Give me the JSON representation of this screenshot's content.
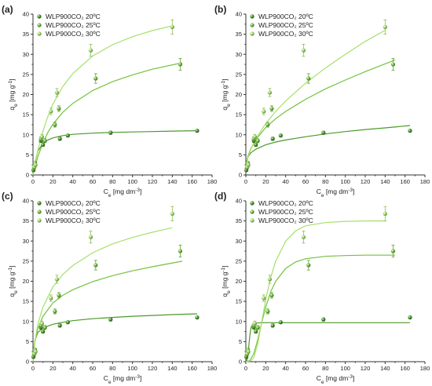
{
  "colors": {
    "s20": "#4a9a2a",
    "s25": "#73c23e",
    "s30": "#a7e06b"
  },
  "chart_data": [
    {
      "type": "scatter",
      "panel": "(a)",
      "xlabel_main": "C",
      "xlabel_sub": "e",
      "xlabel_unit": " [mg dm",
      "xlabel_sup": "-3",
      "xlabel_end": "]",
      "ylabel_main": "q",
      "ylabel_sub": "e",
      "ylabel_unit": " [mg g",
      "ylabel_sup": "-1",
      "ylabel_end": "]",
      "xlim": [
        0,
        180
      ],
      "ylim": [
        0,
        40
      ],
      "xticks": [
        "0",
        "20",
        "40",
        "60",
        "80",
        "100",
        "120",
        "140",
        "160",
        "180"
      ],
      "yticks": [
        "0",
        "5",
        "10",
        "15",
        "20",
        "25",
        "30",
        "35",
        "40"
      ],
      "legend": [
        "WLP900CO₂ 20ºC",
        "WLP900CO₂ 25ºC",
        "WLP900CO₂ 30ºC"
      ],
      "series": [
        {
          "name": "WLP900CO₂ 20ºC",
          "x": [
            0.5,
            1.5,
            8,
            10,
            27,
            35,
            78,
            165
          ],
          "y": [
            1.2,
            2.5,
            8.5,
            7.5,
            9.0,
            9.8,
            10.5,
            11.0
          ],
          "err": [
            0.3,
            0.3,
            0.4,
            0.4,
            0.4,
            0.3,
            0.4,
            0.3
          ],
          "fit_x": [
            0,
            2,
            5,
            10,
            15,
            20,
            30,
            40,
            60,
            80,
            100,
            120,
            140,
            165
          ],
          "fit_y": [
            0,
            3.0,
            6.0,
            7.8,
            8.7,
            9.2,
            9.8,
            10.1,
            10.4,
            10.6,
            10.7,
            10.8,
            10.9,
            11.0
          ]
        },
        {
          "name": "WLP900CO₂ 25ºC",
          "x": [
            1,
            2,
            8,
            12,
            22,
            26,
            63,
            148
          ],
          "y": [
            1.8,
            3.0,
            9.0,
            8.5,
            12.5,
            16.5,
            24.0,
            27.5
          ],
          "err": [
            0.3,
            0.3,
            0.5,
            0.5,
            0.6,
            0.7,
            1.2,
            1.5
          ],
          "fit_x": [
            0,
            2,
            5,
            10,
            15,
            20,
            30,
            40,
            60,
            80,
            100,
            120,
            150
          ],
          "fit_y": [
            0,
            2.0,
            4.6,
            8.0,
            10.6,
            12.6,
            15.6,
            17.8,
            21.0,
            23.2,
            24.9,
            26.3,
            27.9
          ]
        },
        {
          "name": "WLP900CO₂ 30ºC",
          "x": [
            1.5,
            2.5,
            9,
            18,
            24,
            58,
            140
          ],
          "y": [
            2.0,
            2.5,
            9.5,
            15.8,
            20.5,
            31.0,
            36.8
          ],
          "err": [
            0.3,
            0.3,
            0.6,
            0.8,
            1.0,
            1.5,
            1.8
          ],
          "fit_x": [
            0,
            2,
            5,
            10,
            15,
            20,
            30,
            40,
            60,
            80,
            100,
            120,
            140
          ],
          "fit_y": [
            0,
            2.7,
            6.2,
            10.9,
            14.6,
            17.6,
            22.0,
            25.2,
            29.6,
            32.4,
            34.4,
            35.9,
            37.1
          ]
        }
      ]
    },
    {
      "type": "scatter",
      "panel": "(b)",
      "xlabel_main": "C",
      "xlabel_sub": "e",
      "xlabel_unit": " [mg dm",
      "xlabel_sup": "-3",
      "xlabel_end": "]",
      "ylabel_main": "q",
      "ylabel_sub": "e",
      "ylabel_unit": " [mg g",
      "ylabel_sup": "-1",
      "ylabel_end": "]",
      "xlim": [
        0,
        180
      ],
      "ylim": [
        0,
        40
      ],
      "xticks": [
        "0",
        "20",
        "40",
        "60",
        "80",
        "100",
        "120",
        "140",
        "160",
        "180"
      ],
      "yticks": [
        "0",
        "5",
        "10",
        "15",
        "20",
        "25",
        "30",
        "35",
        "40"
      ],
      "legend": [
        "WLP900CO₂ 20ºC",
        "WLP900CO₂ 25ºC",
        "WLP900CO₂ 30ºC"
      ],
      "series": [
        {
          "name": "WLP900CO₂ 20ºC",
          "x": [
            0.5,
            1.5,
            8,
            10,
            27,
            35,
            78,
            165
          ],
          "y": [
            1.2,
            2.5,
            8.5,
            7.5,
            9.0,
            9.8,
            10.5,
            11.0
          ],
          "err": [
            0.3,
            0.3,
            0.4,
            0.4,
            0.4,
            0.3,
            0.4,
            0.3
          ],
          "fit_x": [
            0.3,
            2,
            5,
            10,
            20,
            30,
            40,
            60,
            80,
            100,
            120,
            140,
            165
          ],
          "fit_y": [
            2.8,
            4.4,
            5.5,
            6.4,
            7.5,
            8.2,
            8.7,
            9.5,
            10.2,
            10.8,
            11.3,
            11.7,
            12.3
          ]
        },
        {
          "name": "WLP900CO₂ 25ºC",
          "x": [
            1,
            2,
            8,
            12,
            22,
            26,
            63,
            148
          ],
          "y": [
            1.8,
            3.0,
            9.0,
            8.5,
            12.5,
            16.5,
            24.0,
            27.5
          ],
          "err": [
            0.3,
            0.3,
            0.5,
            0.5,
            0.6,
            0.7,
            1.2,
            1.5
          ],
          "fit_x": [
            0.3,
            2,
            5,
            10,
            20,
            30,
            40,
            60,
            80,
            100,
            120,
            150
          ],
          "fit_y": [
            2.6,
            4.6,
            6.6,
            8.8,
            11.8,
            14.0,
            15.8,
            18.8,
            21.4,
            23.6,
            25.7,
            28.6
          ]
        },
        {
          "name": "WLP900CO₂ 30ºC",
          "x": [
            1.5,
            2.5,
            9,
            18,
            24,
            58,
            140
          ],
          "y": [
            2.0,
            2.5,
            9.5,
            15.8,
            20.5,
            31.0,
            36.8
          ],
          "err": [
            0.3,
            0.3,
            0.6,
            0.8,
            1.0,
            1.5,
            1.8
          ],
          "fit_x": [
            0.3,
            2,
            5,
            10,
            20,
            30,
            40,
            60,
            80,
            100,
            120,
            140
          ],
          "fit_y": [
            2.2,
            4.2,
            6.4,
            9.0,
            12.8,
            15.8,
            18.4,
            22.8,
            26.6,
            30.0,
            33.2,
            36.0
          ]
        }
      ]
    },
    {
      "type": "scatter",
      "panel": "(c)",
      "xlabel_main": "C",
      "xlabel_sub": "e",
      "xlabel_unit": " [mg dm",
      "xlabel_sup": "-3",
      "xlabel_end": "]",
      "ylabel_main": "q",
      "ylabel_sub": "e",
      "ylabel_unit": " [mg g",
      "ylabel_sup": "-1",
      "ylabel_end": "]",
      "xlim": [
        0,
        180
      ],
      "ylim": [
        0,
        40
      ],
      "xticks": [
        "0",
        "20",
        "40",
        "60",
        "80",
        "100",
        "120",
        "140",
        "160",
        "180"
      ],
      "yticks": [
        "0",
        "5",
        "10",
        "15",
        "20",
        "25",
        "30",
        "35",
        "40"
      ],
      "legend": [
        "WLP900CO₂ 20ºC",
        "WLP900CO₂ 25ºC",
        "WLP900CO₂ 30ºC"
      ],
      "series": [
        {
          "name": "WLP900CO₂ 20ºC",
          "x": [
            0.5,
            1.5,
            8,
            10,
            27,
            35,
            78,
            165
          ],
          "y": [
            1.2,
            2.5,
            8.5,
            7.5,
            9.0,
            9.8,
            10.5,
            11.0
          ],
          "err": [
            0.3,
            0.3,
            0.4,
            0.4,
            0.4,
            0.3,
            0.4,
            0.3
          ],
          "fit_x": [
            0,
            1,
            2,
            5,
            10,
            20,
            30,
            40,
            60,
            80,
            100,
            120,
            140,
            165
          ],
          "fit_y": [
            0,
            3.5,
            5.3,
            7.3,
            8.4,
            9.3,
            9.8,
            10.2,
            10.7,
            11.0,
            11.3,
            11.5,
            11.7,
            11.9
          ]
        },
        {
          "name": "WLP900CO₂ 25ºC",
          "x": [
            1,
            2,
            8,
            12,
            22,
            26,
            63,
            148
          ],
          "y": [
            1.8,
            3.0,
            9.0,
            8.5,
            12.5,
            16.5,
            24.0,
            27.5
          ],
          "err": [
            0.3,
            0.3,
            0.5,
            0.5,
            0.6,
            0.7,
            1.2,
            1.5
          ],
          "fit_x": [
            0,
            1,
            2,
            5,
            10,
            20,
            30,
            40,
            60,
            80,
            100,
            120,
            150
          ],
          "fit_y": [
            0,
            3.0,
            5.0,
            8.3,
            11.3,
            14.6,
            16.5,
            17.9,
            19.9,
            21.4,
            22.6,
            23.6,
            25.0
          ]
        },
        {
          "name": "WLP900CO₂ 30ºC",
          "x": [
            1.5,
            2.5,
            9,
            18,
            24,
            58,
            140
          ],
          "y": [
            2.0,
            2.5,
            9.5,
            15.8,
            20.5,
            31.0,
            36.8
          ],
          "err": [
            0.3,
            0.3,
            0.6,
            0.8,
            1.0,
            1.5,
            1.8
          ],
          "fit_x": [
            0,
            1,
            2,
            5,
            10,
            20,
            30,
            40,
            60,
            80,
            100,
            120,
            140
          ],
          "fit_y": [
            0,
            3.0,
            5.2,
            9.4,
            13.6,
            18.6,
            21.7,
            23.9,
            27.1,
            29.3,
            30.9,
            32.2,
            33.3
          ]
        }
      ]
    },
    {
      "type": "scatter",
      "panel": "(d)",
      "xlabel_main": "C",
      "xlabel_sub": "e",
      "xlabel_unit": " [mg dm",
      "xlabel_sup": "-3",
      "xlabel_end": "]",
      "ylabel_main": "q",
      "ylabel_sub": "e",
      "ylabel_unit": " [mg g",
      "ylabel_sup": "-1",
      "ylabel_end": "]",
      "xlim": [
        0,
        180
      ],
      "ylim": [
        0,
        40
      ],
      "xticks": [
        "0",
        "20",
        "40",
        "60",
        "80",
        "100",
        "120",
        "140",
        "160",
        "180"
      ],
      "yticks": [
        "0",
        "5",
        "10",
        "15",
        "20",
        "25",
        "30",
        "35",
        "40"
      ],
      "legend": [
        "WLP900CO₂ 20ºC",
        "WLP900CO₂ 25ºC",
        "WLP900CO₂ 30ºC"
      ],
      "series": [
        {
          "name": "WLP900CO₂ 20ºC",
          "x": [
            0.5,
            1.5,
            8,
            10,
            27,
            35,
            78,
            165
          ],
          "y": [
            1.2,
            2.5,
            8.5,
            7.5,
            9.0,
            9.8,
            10.5,
            11.0
          ],
          "err": [
            0.3,
            0.3,
            0.4,
            0.4,
            0.4,
            0.3,
            0.4,
            0.3
          ],
          "fit_x": [
            0,
            1,
            2,
            3,
            4,
            5,
            6,
            8,
            10,
            15,
            20,
            40,
            80,
            120,
            165
          ],
          "fit_y": [
            0,
            0.3,
            1.5,
            4.0,
            6.5,
            8.2,
            9.0,
            9.5,
            9.6,
            9.7,
            9.7,
            9.7,
            9.7,
            9.7,
            9.7
          ]
        },
        {
          "name": "WLP900CO₂ 25ºC",
          "x": [
            1,
            2,
            8,
            12,
            22,
            26,
            63,
            148
          ],
          "y": [
            1.8,
            3.0,
            9.0,
            8.5,
            12.5,
            16.5,
            24.0,
            27.5
          ],
          "err": [
            0.3,
            0.3,
            0.5,
            0.5,
            0.6,
            0.7,
            1.2,
            1.5
          ],
          "fit_x": [
            0,
            4,
            8,
            12,
            16,
            20,
            25,
            30,
            40,
            50,
            60,
            80,
            100,
            120,
            150
          ],
          "fit_y": [
            0,
            0.3,
            2.0,
            5.5,
            9.8,
            13.6,
            17.4,
            20.0,
            23.2,
            24.8,
            25.6,
            26.2,
            26.4,
            26.5,
            26.5
          ]
        },
        {
          "name": "WLP900CO₂ 30ºC",
          "x": [
            1.5,
            2.5,
            9,
            18,
            24,
            58,
            140
          ],
          "y": [
            2.0,
            2.5,
            9.5,
            15.8,
            20.5,
            31.0,
            36.8
          ],
          "err": [
            0.3,
            0.3,
            0.6,
            0.8,
            1.0,
            1.5,
            1.8
          ],
          "fit_x": [
            0,
            5,
            8,
            12,
            16,
            20,
            25,
            30,
            40,
            50,
            60,
            80,
            100,
            120,
            140
          ],
          "fit_y": [
            0,
            0.2,
            1.0,
            4.5,
            10.0,
            15.5,
            21.0,
            25.0,
            30.0,
            32.5,
            33.8,
            34.6,
            34.9,
            35.0,
            35.0
          ]
        }
      ]
    }
  ]
}
